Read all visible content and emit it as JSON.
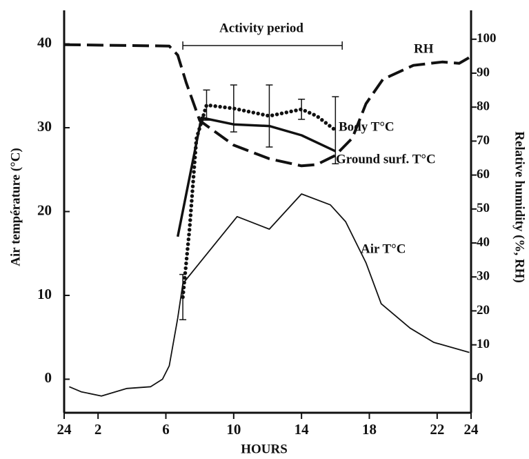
{
  "chart_data": {
    "type": "line",
    "xlabel": "HOURS",
    "ylabel": "Air température (°C)",
    "y2label": "Relative humidity (%, RH)",
    "xlim": [
      0,
      24
    ],
    "xticks": [
      {
        "value": 0,
        "label": "24"
      },
      2,
      6,
      10,
      14,
      18,
      22,
      24
    ],
    "ylim": [
      -4,
      44
    ],
    "yticks": [
      0,
      10,
      20,
      30,
      40
    ],
    "y2lim": [
      -10,
      108.5
    ],
    "y2ticks": [
      0,
      10,
      20,
      30,
      40,
      50,
      60,
      70,
      80,
      90,
      100
    ],
    "activity_period": {
      "label": "Activity period",
      "x": [
        7,
        16.4
      ]
    },
    "series": [
      {
        "name": "RH",
        "color": "#111111",
        "style": "dashed",
        "axis": "y2",
        "x": [
          0,
          6.2,
          6.7,
          7.2,
          8,
          10,
          12.1,
          14,
          14.9,
          16,
          17,
          17.8,
          18.8,
          20.6,
          22.3,
          23.3,
          24
        ],
        "values": [
          98.4,
          98,
          95.3,
          87.2,
          76,
          68.8,
          64.8,
          62.7,
          63.1,
          65.8,
          70.9,
          81,
          88.2,
          92.3,
          93.3,
          92.9,
          94.9
        ]
      },
      {
        "name": "Body T°C",
        "color": "#111111",
        "style": "dotted",
        "x": [
          7,
          7.4,
          7.8,
          8.4,
          10,
          12.1,
          14,
          14.9,
          16
        ],
        "values": [
          9.8,
          18,
          28.7,
          32.7,
          32.3,
          31.4,
          32.2,
          31.4,
          29.7
        ],
        "errors": [
          2.7,
          null,
          null,
          1.8,
          2.8,
          3.7,
          1.2,
          null,
          4
        ]
      },
      {
        "name": "Ground surf. T°C",
        "color": "#111111",
        "style": "thick",
        "x": [
          6.7,
          8.1,
          10,
          12.1,
          14,
          16
        ],
        "values": [
          17,
          31.2,
          30.4,
          30.2,
          29.1,
          27.2
        ]
      },
      {
        "name": "Air T°C",
        "color": "#111111",
        "style": "thin",
        "x": [
          0.3,
          1,
          2.2,
          3.7,
          5.1,
          5.8,
          6.2,
          6.7,
          7,
          8,
          9,
          10.2,
          12.1,
          14,
          15.7,
          16.6,
          17.8,
          18.7,
          20.4,
          21.8,
          23.9
        ],
        "values": [
          -0.9,
          -1.5,
          -2,
          -1.1,
          -0.9,
          0,
          1.6,
          7.3,
          11.4,
          13.9,
          16.4,
          19.4,
          17.9,
          22.1,
          20.8,
          18.8,
          13.9,
          9,
          6.1,
          4.4,
          3.2
        ]
      }
    ]
  }
}
